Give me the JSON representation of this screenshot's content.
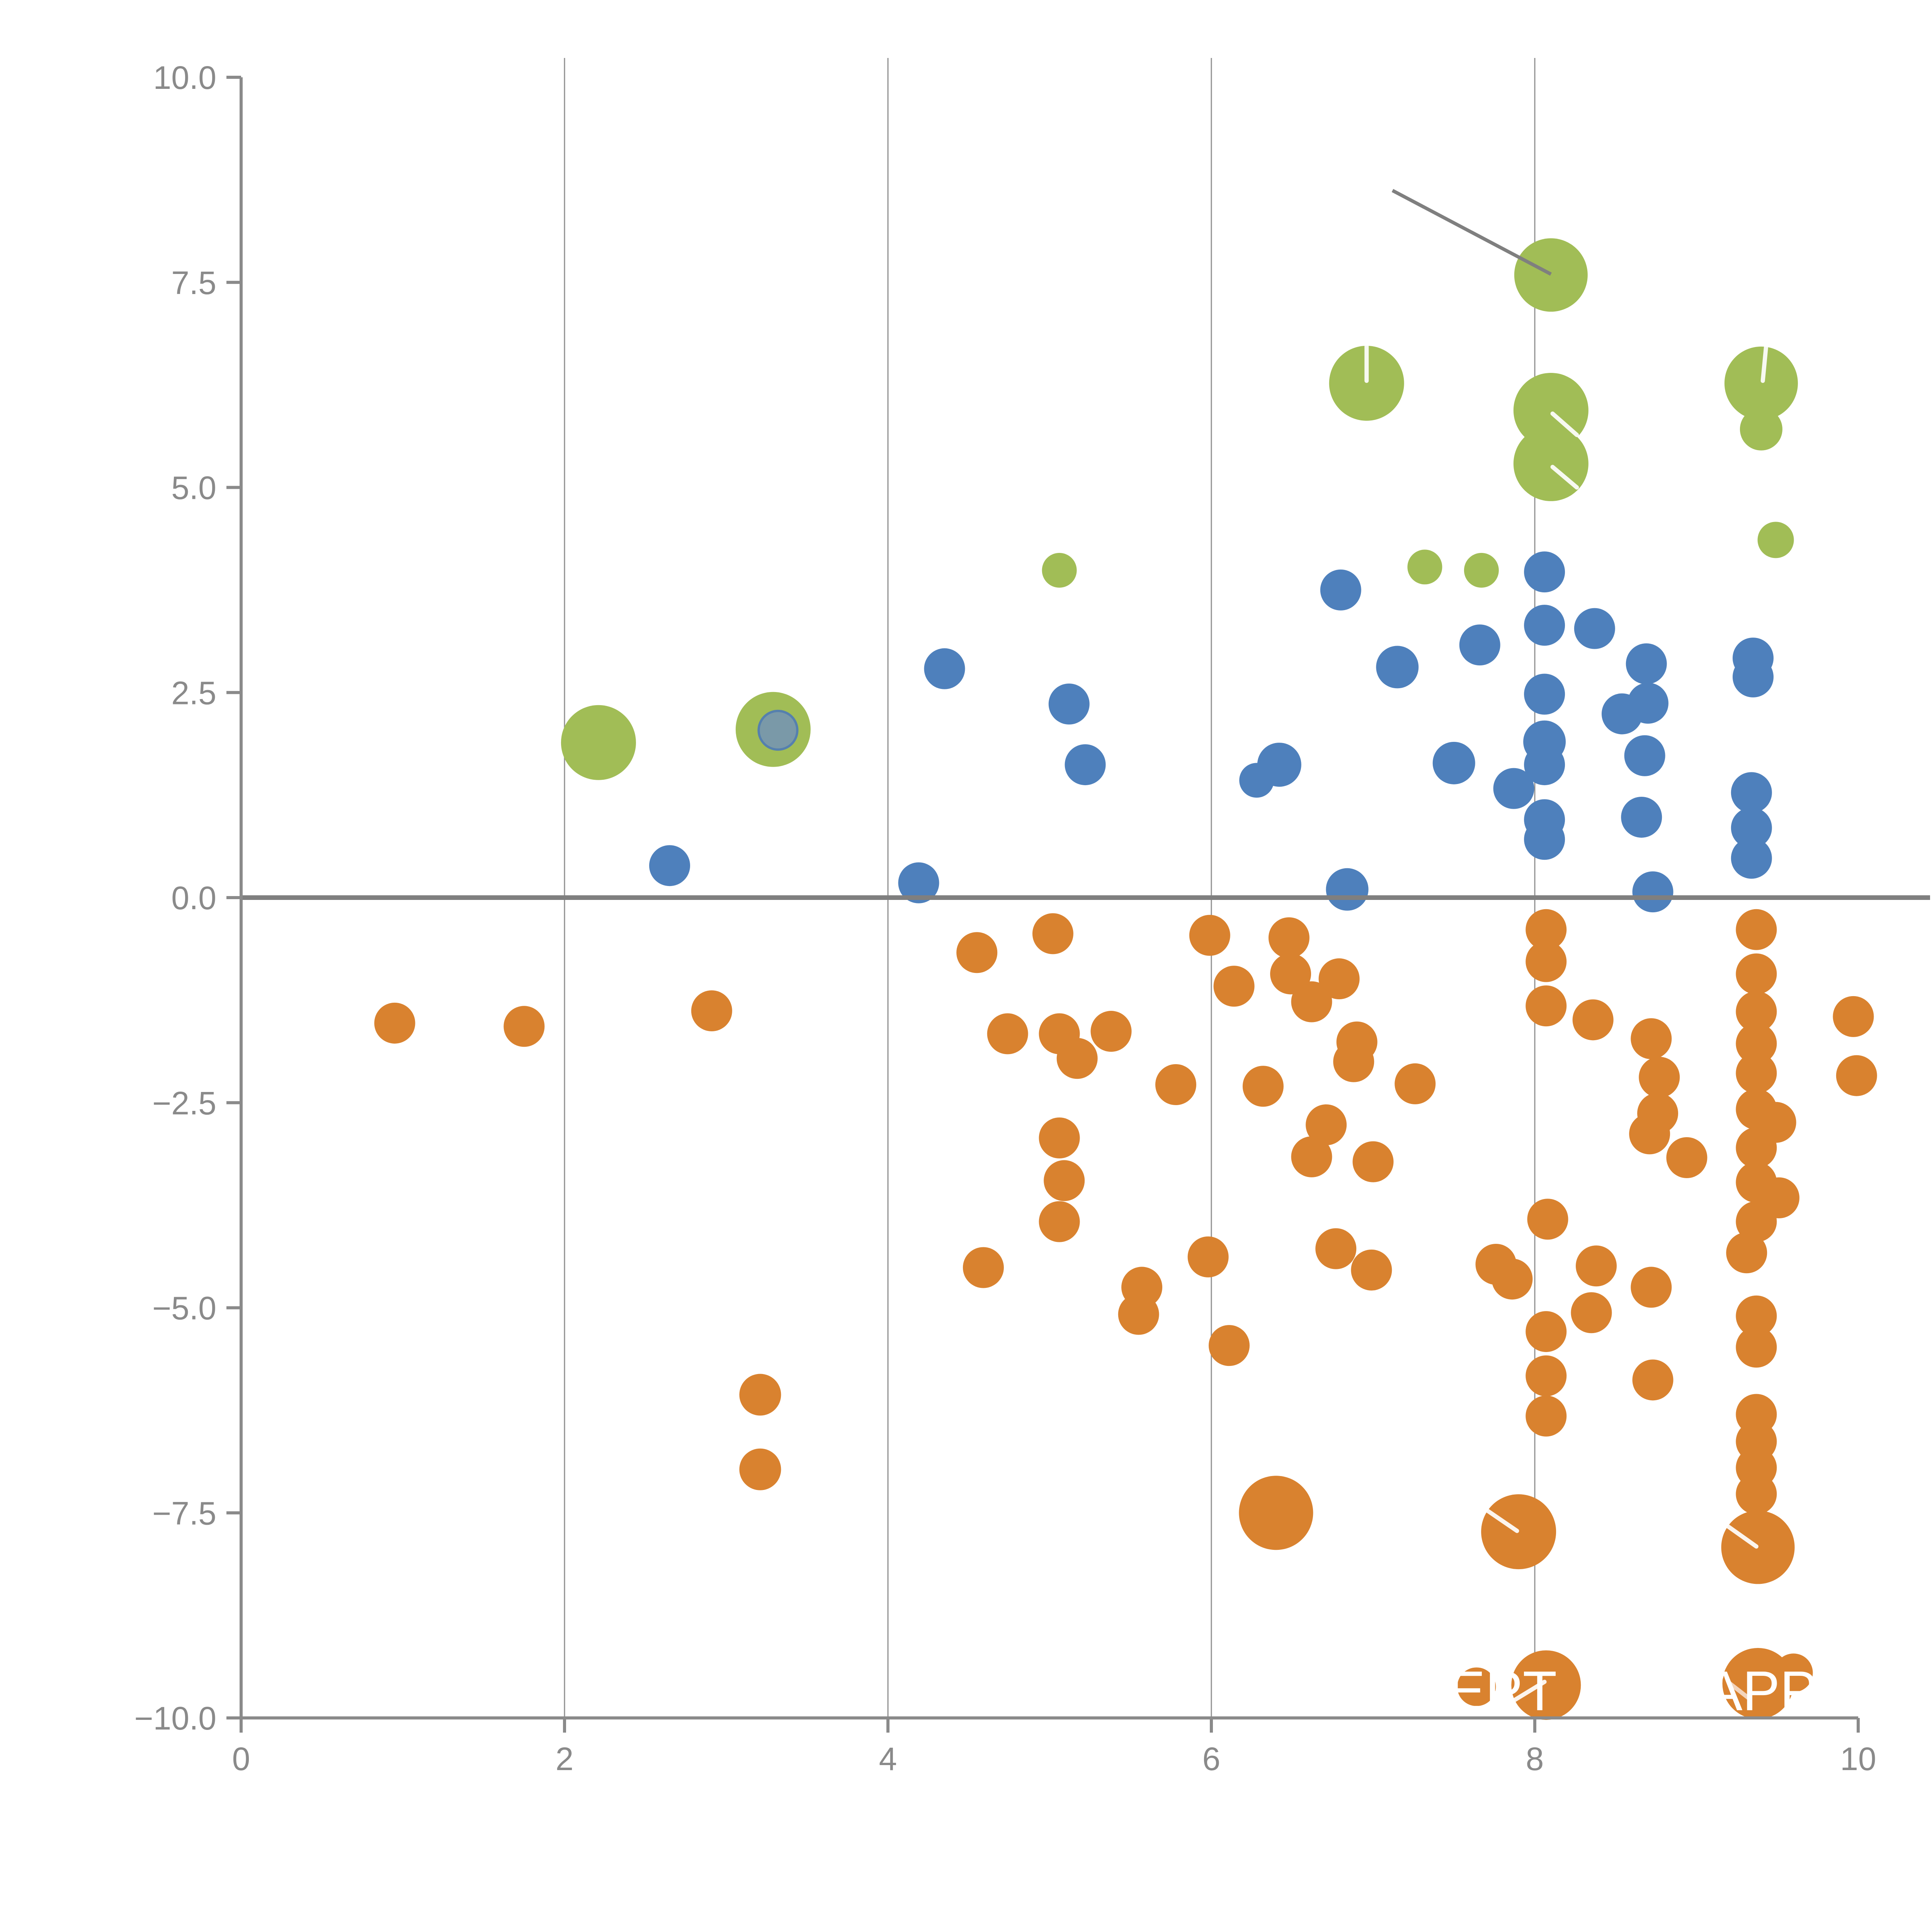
{
  "chart_data": {
    "type": "scatter",
    "title": "",
    "xlabel": "",
    "ylabel": "",
    "xlim": [
      0,
      10
    ],
    "ylim": [
      -10,
      10
    ],
    "grid": "vertical-only",
    "legend_position": "none",
    "x_tick_values": [
      0,
      2,
      4,
      6,
      8,
      10
    ],
    "x_tick_labels": [
      "0",
      "2",
      "4",
      "6",
      "8",
      "10"
    ],
    "y_tick_values": [
      10,
      7.5,
      5,
      2.5,
      0,
      -2.5,
      -5,
      -7.5,
      -10
    ],
    "y_tick_labels": [
      "10.0",
      "7.5",
      "5.0",
      "2.5",
      "0.0",
      "−2.5",
      "−5.0",
      "−7.5",
      "−10.0"
    ],
    "gridlines_x": [
      2,
      4,
      6,
      8
    ],
    "zero_line_y": 0,
    "series": [
      {
        "name": "green",
        "color": "#A1BD56",
        "points": [
          {
            "x": 2.21,
            "y": 1.89,
            "r": 97
          },
          {
            "x": 3.29,
            "y": 2.05,
            "r": 97
          },
          {
            "x": 5.06,
            "y": 3.99,
            "r": 45
          },
          {
            "x": 6.96,
            "y": 6.27,
            "r": 97
          },
          {
            "x": 7.32,
            "y": 4.03,
            "r": 45
          },
          {
            "x": 7.67,
            "y": 3.99,
            "r": 45
          },
          {
            "x": 8.1,
            "y": 7.59,
            "r": 95
          },
          {
            "x": 8.1,
            "y": 5.94,
            "r": 97
          },
          {
            "x": 8.1,
            "y": 5.29,
            "r": 97
          },
          {
            "x": 9.4,
            "y": 6.27,
            "r": 95
          },
          {
            "x": 9.4,
            "y": 5.71,
            "r": 55
          },
          {
            "x": 9.49,
            "y": 4.36,
            "r": 47
          }
        ]
      },
      {
        "name": "blue",
        "color": "#4E80BC",
        "points": [
          {
            "x": 2.65,
            "y": 0.39,
            "r": 53
          },
          {
            "x": 4.19,
            "y": 0.18,
            "r": 53
          },
          {
            "x": 4.35,
            "y": 2.79,
            "r": 53
          },
          {
            "x": 5.12,
            "y": 2.36,
            "r": 53
          },
          {
            "x": 5.22,
            "y": 1.62,
            "r": 53
          },
          {
            "x": 6.42,
            "y": 1.62,
            "r": 57
          },
          {
            "x": 6.28,
            "y": 1.43,
            "r": 45
          },
          {
            "x": 6.8,
            "y": 3.75,
            "r": 53
          },
          {
            "x": 6.84,
            "y": 0.1,
            "r": 55
          },
          {
            "x": 7.15,
            "y": 2.81,
            "r": 55
          },
          {
            "x": 7.5,
            "y": 1.64,
            "r": 55
          },
          {
            "x": 7.66,
            "y": 3.08,
            "r": 53
          },
          {
            "x": 7.87,
            "y": 1.33,
            "r": 53
          },
          {
            "x": 8.06,
            "y": 3.97,
            "r": 53
          },
          {
            "x": 8.06,
            "y": 3.32,
            "r": 53
          },
          {
            "x": 8.06,
            "y": 2.48,
            "r": 53
          },
          {
            "x": 8.06,
            "y": 1.9,
            "r": 55
          },
          {
            "x": 8.06,
            "y": 1.62,
            "r": 53
          },
          {
            "x": 8.06,
            "y": 0.95,
            "r": 53
          },
          {
            "x": 8.06,
            "y": 0.71,
            "r": 53
          },
          {
            "x": 8.37,
            "y": 3.28,
            "r": 53
          },
          {
            "x": 8.54,
            "y": 2.24,
            "r": 53
          },
          {
            "x": 8.69,
            "y": 2.85,
            "r": 53
          },
          {
            "x": 8.7,
            "y": 2.37,
            "r": 53
          },
          {
            "x": 8.68,
            "y": 1.73,
            "r": 53
          },
          {
            "x": 8.66,
            "y": 0.98,
            "r": 53
          },
          {
            "x": 8.73,
            "y": 0.07,
            "r": 53
          },
          {
            "x": 9.35,
            "y": 2.92,
            "r": 53
          },
          {
            "x": 9.35,
            "y": 2.69,
            "r": 53
          },
          {
            "x": 9.34,
            "y": 1.28,
            "r": 53
          },
          {
            "x": 9.34,
            "y": 0.85,
            "r": 53
          },
          {
            "x": 9.34,
            "y": 0.48,
            "r": 53
          }
        ]
      },
      {
        "name": "orange",
        "color": "#D9822F",
        "points": [
          {
            "x": 0.95,
            "y": -1.53,
            "r": 53
          },
          {
            "x": 1.75,
            "y": -1.57,
            "r": 53
          },
          {
            "x": 2.91,
            "y": -1.38,
            "r": 53
          },
          {
            "x": 3.21,
            "y": -6.06,
            "r": 54
          },
          {
            "x": 3.21,
            "y": -6.97,
            "r": 54
          },
          {
            "x": 4.55,
            "y": -0.67,
            "r": 53
          },
          {
            "x": 5.02,
            "y": -0.44,
            "r": 53
          },
          {
            "x": 5.99,
            "y": -0.46,
            "r": 53
          },
          {
            "x": 4.74,
            "y": -1.66,
            "r": 53
          },
          {
            "x": 5.06,
            "y": -1.66,
            "r": 53
          },
          {
            "x": 5.38,
            "y": -1.63,
            "r": 53
          },
          {
            "x": 5.17,
            "y": -1.96,
            "r": 53
          },
          {
            "x": 5.78,
            "y": -2.28,
            "r": 53
          },
          {
            "x": 6.32,
            "y": -2.3,
            "r": 53
          },
          {
            "x": 5.06,
            "y": -2.93,
            "r": 53
          },
          {
            "x": 5.09,
            "y": -3.45,
            "r": 53
          },
          {
            "x": 5.06,
            "y": -3.95,
            "r": 53
          },
          {
            "x": 4.59,
            "y": -4.51,
            "r": 53
          },
          {
            "x": 5.57,
            "y": -4.75,
            "r": 53
          },
          {
            "x": 5.55,
            "y": -5.08,
            "r": 53
          },
          {
            "x": 5.98,
            "y": -4.38,
            "r": 53
          },
          {
            "x": 6.48,
            "y": -0.49,
            "r": 53
          },
          {
            "x": 6.49,
            "y": -0.93,
            "r": 53
          },
          {
            "x": 6.79,
            "y": -0.99,
            "r": 53
          },
          {
            "x": 6.14,
            "y": -1.08,
            "r": 53
          },
          {
            "x": 6.62,
            "y": -1.27,
            "r": 53
          },
          {
            "x": 6.9,
            "y": -1.76,
            "r": 53
          },
          {
            "x": 6.88,
            "y": -2.0,
            "r": 53
          },
          {
            "x": 7.26,
            "y": -2.27,
            "r": 53
          },
          {
            "x": 6.71,
            "y": -2.77,
            "r": 53
          },
          {
            "x": 6.62,
            "y": -3.16,
            "r": 53
          },
          {
            "x": 7.0,
            "y": -3.22,
            "r": 53
          },
          {
            "x": 6.77,
            "y": -4.28,
            "r": 53
          },
          {
            "x": 6.99,
            "y": -4.54,
            "r": 53
          },
          {
            "x": 6.11,
            "y": -5.46,
            "r": 53
          },
          {
            "x": 6.4,
            "y": -7.5,
            "r": 96
          },
          {
            "x": 8.07,
            "y": -0.39,
            "r": 53
          },
          {
            "x": 8.07,
            "y": -0.78,
            "r": 53
          },
          {
            "x": 8.07,
            "y": -1.32,
            "r": 53
          },
          {
            "x": 8.36,
            "y": -1.49,
            "r": 53
          },
          {
            "x": 8.72,
            "y": -1.72,
            "r": 53
          },
          {
            "x": 8.77,
            "y": -2.19,
            "r": 53
          },
          {
            "x": 8.76,
            "y": -2.63,
            "r": 53
          },
          {
            "x": 8.71,
            "y": -2.88,
            "r": 53
          },
          {
            "x": 8.94,
            "y": -3.17,
            "r": 53
          },
          {
            "x": 8.08,
            "y": -3.92,
            "r": 53
          },
          {
            "x": 7.76,
            "y": -4.47,
            "r": 53
          },
          {
            "x": 7.86,
            "y": -4.65,
            "r": 53
          },
          {
            "x": 8.38,
            "y": -4.49,
            "r": 53
          },
          {
            "x": 8.72,
            "y": -4.75,
            "r": 53
          },
          {
            "x": 8.35,
            "y": -5.06,
            "r": 53
          },
          {
            "x": 8.07,
            "y": -5.29,
            "r": 53
          },
          {
            "x": 8.07,
            "y": -5.83,
            "r": 53
          },
          {
            "x": 8.07,
            "y": -6.32,
            "r": 53
          },
          {
            "x": 8.73,
            "y": -5.88,
            "r": 53
          },
          {
            "x": 7.9,
            "y": -7.73,
            "r": 97
          },
          {
            "x": 8.07,
            "y": -9.6,
            "r": 90
          },
          {
            "x": 7.64,
            "y": -9.62,
            "r": 50
          },
          {
            "x": 9.37,
            "y": -0.39,
            "r": 53
          },
          {
            "x": 9.37,
            "y": -0.93,
            "r": 53
          },
          {
            "x": 9.37,
            "y": -1.39,
            "r": 53
          },
          {
            "x": 9.37,
            "y": -1.78,
            "r": 53
          },
          {
            "x": 9.37,
            "y": -2.14,
            "r": 53
          },
          {
            "x": 9.37,
            "y": -2.58,
            "r": 53
          },
          {
            "x": 9.49,
            "y": -2.74,
            "r": 53
          },
          {
            "x": 9.37,
            "y": -3.05,
            "r": 53
          },
          {
            "x": 9.37,
            "y": -3.47,
            "r": 53
          },
          {
            "x": 9.51,
            "y": -3.66,
            "r": 53
          },
          {
            "x": 9.37,
            "y": -3.95,
            "r": 53
          },
          {
            "x": 9.31,
            "y": -4.33,
            "r": 53
          },
          {
            "x": 9.37,
            "y": -5.1,
            "r": 53
          },
          {
            "x": 9.37,
            "y": -5.48,
            "r": 53
          },
          {
            "x": 9.37,
            "y": -6.3,
            "r": 53
          },
          {
            "x": 9.37,
            "y": -6.63,
            "r": 53
          },
          {
            "x": 9.37,
            "y": -6.95,
            "r": 53
          },
          {
            "x": 9.37,
            "y": -7.27,
            "r": 53
          },
          {
            "x": 9.38,
            "y": -7.92,
            "r": 95
          },
          {
            "x": 9.38,
            "y": -9.58,
            "r": 92
          },
          {
            "x": 9.6,
            "y": -9.45,
            "r": 50
          },
          {
            "x": 9.97,
            "y": -1.45,
            "r": 53
          },
          {
            "x": 9.99,
            "y": -2.17,
            "r": 53
          }
        ]
      }
    ],
    "overlay_point": {
      "x": 3.32,
      "y": 2.04,
      "r": 50,
      "fill": "#7A99A8",
      "stroke": "#5580AE"
    },
    "annotation_line": {
      "x1": 7.12,
      "y1": 8.62,
      "x2": 8.1,
      "y2": 7.6
    },
    "white_marks": [
      {
        "x1": 6.96,
        "y1": 6.3,
        "x2": 6.96,
        "y2": 6.72
      },
      {
        "x1": 9.41,
        "y1": 6.3,
        "x2": 9.43,
        "y2": 6.71
      },
      {
        "x1": 8.11,
        "y1": 5.9,
        "x2": 8.26,
        "y2": 5.64
      },
      {
        "x1": 8.11,
        "y1": 5.25,
        "x2": 8.26,
        "y2": 5.0
      },
      {
        "x1": 7.69,
        "y1": -7.45,
        "x2": 7.89,
        "y2": -7.72
      },
      {
        "x1": 9.17,
        "y1": -7.63,
        "x2": 9.37,
        "y2": -7.91
      },
      {
        "x1": 7.86,
        "y1": -9.8,
        "x2": 8.06,
        "y2": -9.56
      },
      {
        "x1": 9.2,
        "y1": -9.57,
        "x2": 9.33,
        "y2": -9.77,
        "soft": true
      }
    ],
    "bubble_labels": [
      {
        "text": "EPT",
        "x": 7.8,
        "y": -9.67
      },
      {
        "text": "APP",
        "x": 9.4,
        "y": -9.67
      }
    ]
  },
  "colors": {
    "green": "#A1BD56",
    "blue": "#4E80BC",
    "orange": "#D9822F",
    "axis": "#8A8A8A",
    "grid": "#8F8F8F",
    "zero_line": "#7F7F7F",
    "annotation": "#7F7F7F",
    "soft_mark": "#F6DCC9",
    "bubble_label_text": "#FFFFFF",
    "background": "#FFFFFF"
  }
}
